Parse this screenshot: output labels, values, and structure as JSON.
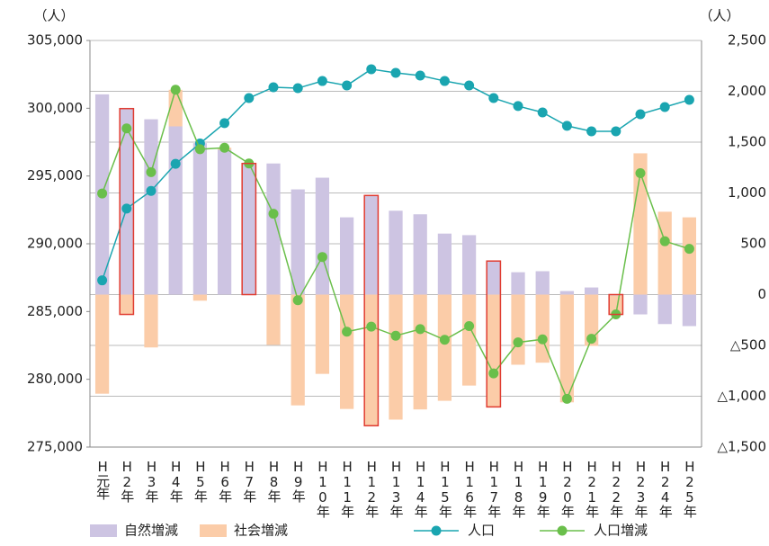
{
  "chart_data": {
    "type": "combo",
    "y_unit": "（人）",
    "y2_unit": "（人）",
    "categories": [
      "H元年",
      "H2年",
      "H3年",
      "H4年",
      "H5年",
      "H6年",
      "H7年",
      "H8年",
      "H9年",
      "H10年",
      "H11年",
      "H12年",
      "H13年",
      "H14年",
      "H15年",
      "H16年",
      "H17年",
      "H18年",
      "H19年",
      "H20年",
      "H21年",
      "H22年",
      "H23年",
      "H24年",
      "H25年"
    ],
    "ylim": [
      275000,
      305000
    ],
    "yticks": [
      {
        "value": 305000,
        "label": "305,000"
      },
      {
        "value": 300000,
        "label": "300,000"
      },
      {
        "value": 295000,
        "label": "295,000"
      },
      {
        "value": 290000,
        "label": "290,000"
      },
      {
        "value": 285000,
        "label": "285,000"
      },
      {
        "value": 280000,
        "label": "280,000"
      },
      {
        "value": 275000,
        "label": "275,000"
      }
    ],
    "y2lim": [
      -1500,
      2500
    ],
    "y2ticks": [
      {
        "value": 2500,
        "label": "2,500"
      },
      {
        "value": 2000,
        "label": "2,000"
      },
      {
        "value": 1500,
        "label": "1,500"
      },
      {
        "value": 1000,
        "label": "1,000"
      },
      500,
      0,
      {
        "value": -500,
        "label": "△500"
      },
      {
        "value": -1000,
        "label": "△1,000"
      },
      {
        "value": -1500,
        "label": "△1,500"
      }
    ],
    "grid": true,
    "highlighted": [
      1,
      6,
      11,
      16,
      21
    ],
    "highlight_color": "#e03c31",
    "series": [
      {
        "name": "自然増減",
        "type": "bar",
        "axis": "y2",
        "color": "#cdc4e2",
        "values": [
          1970,
          1830,
          1725,
          1655,
          1490,
          1425,
          1285,
          1290,
          1035,
          1150,
          760,
          975,
          825,
          790,
          600,
          585,
          330,
          220,
          230,
          35,
          70,
          -10,
          -195,
          -290,
          -310
        ]
      },
      {
        "name": "社会増減",
        "type": "bar",
        "axis": "y2",
        "color": "#fbcca8",
        "values": [
          -975,
          -195,
          -520,
          360,
          -60,
          20,
          5,
          -495,
          -1090,
          -780,
          -1125,
          -1290,
          -1230,
          -1130,
          -1045,
          -895,
          -1105,
          -690,
          -670,
          -1060,
          -505,
          -185,
          1390,
          815,
          760
        ]
      },
      {
        "name": "人口",
        "type": "line",
        "axis": "y",
        "color": "#1aa5b0",
        "values": [
          287300,
          292600,
          293900,
          295900,
          297400,
          298900,
          300750,
          301550,
          301480,
          302010,
          301680,
          302880,
          302610,
          302410,
          302010,
          301680,
          300750,
          300160,
          299690,
          298700,
          298300,
          298300,
          299560,
          300090,
          300620
        ]
      },
      {
        "name": "人口増減",
        "type": "line",
        "axis": "y2",
        "color": "#6abf4b",
        "values": [
          995,
          1635,
          1205,
          2015,
          1430,
          1445,
          1290,
          795,
          -55,
          370,
          -365,
          -315,
          -405,
          -340,
          -445,
          -310,
          -775,
          -470,
          -440,
          -1025,
          -435,
          -195,
          1195,
          525,
          450
        ]
      }
    ]
  }
}
